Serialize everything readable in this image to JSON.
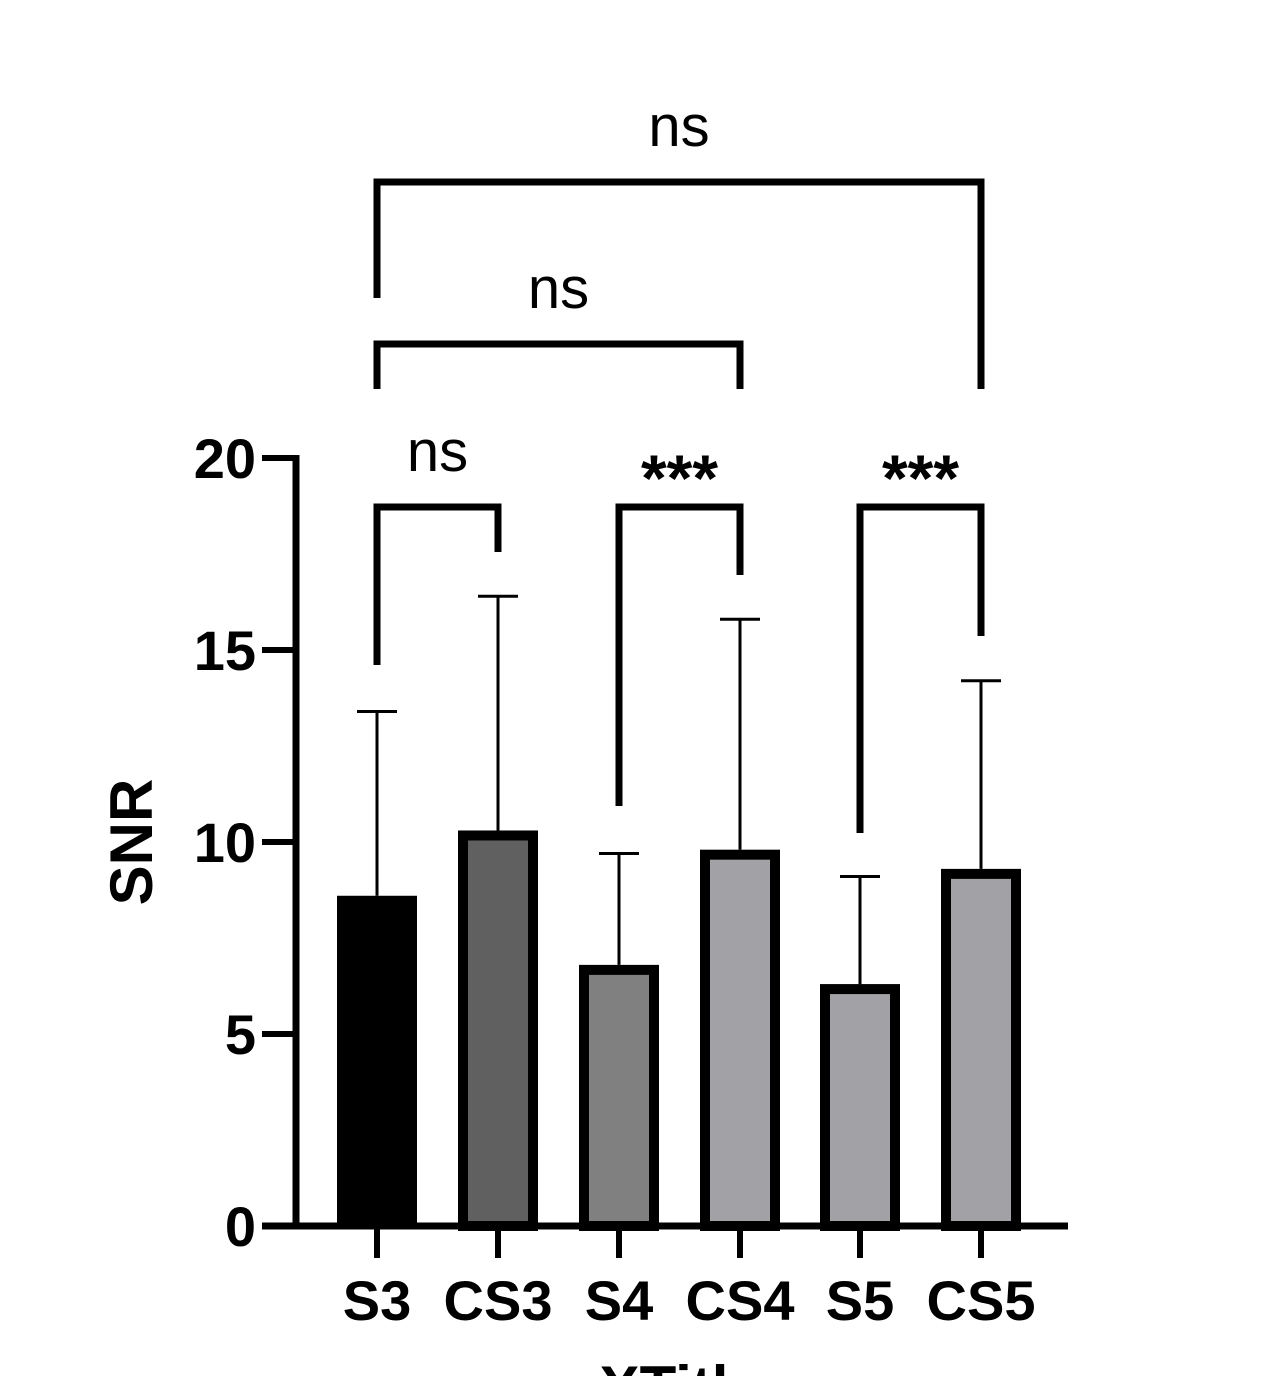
{
  "chart_data": {
    "type": "bar",
    "title": "",
    "xlabel": "XTitl",
    "ylabel": "SNR",
    "ylim": [
      0,
      20
    ],
    "yticks": [
      0,
      5,
      10,
      15,
      20
    ],
    "grid": false,
    "categories": [
      "S3",
      "CS3",
      "S4",
      "CS4",
      "S5",
      "CS5"
    ],
    "values": [
      8.6,
      10.3,
      6.8,
      9.8,
      6.3,
      9.3
    ],
    "error_upper": [
      13.4,
      16.4,
      9.7,
      15.8,
      9.1,
      14.2
    ],
    "colors": [
      "#000000",
      "#606060",
      "#808080",
      "#a2a1a6",
      "#a2a1a6",
      "#a2a1a6"
    ],
    "comparisons": [
      {
        "from": "S3",
        "to": "CS3",
        "label": "ns"
      },
      {
        "from": "S4",
        "to": "CS4",
        "label": "***"
      },
      {
        "from": "S5",
        "to": "CS5",
        "label": "***"
      },
      {
        "from": "S3",
        "to": "CS4",
        "label": "ns"
      },
      {
        "from": "S3",
        "to": "CS5",
        "label": "ns"
      }
    ]
  }
}
